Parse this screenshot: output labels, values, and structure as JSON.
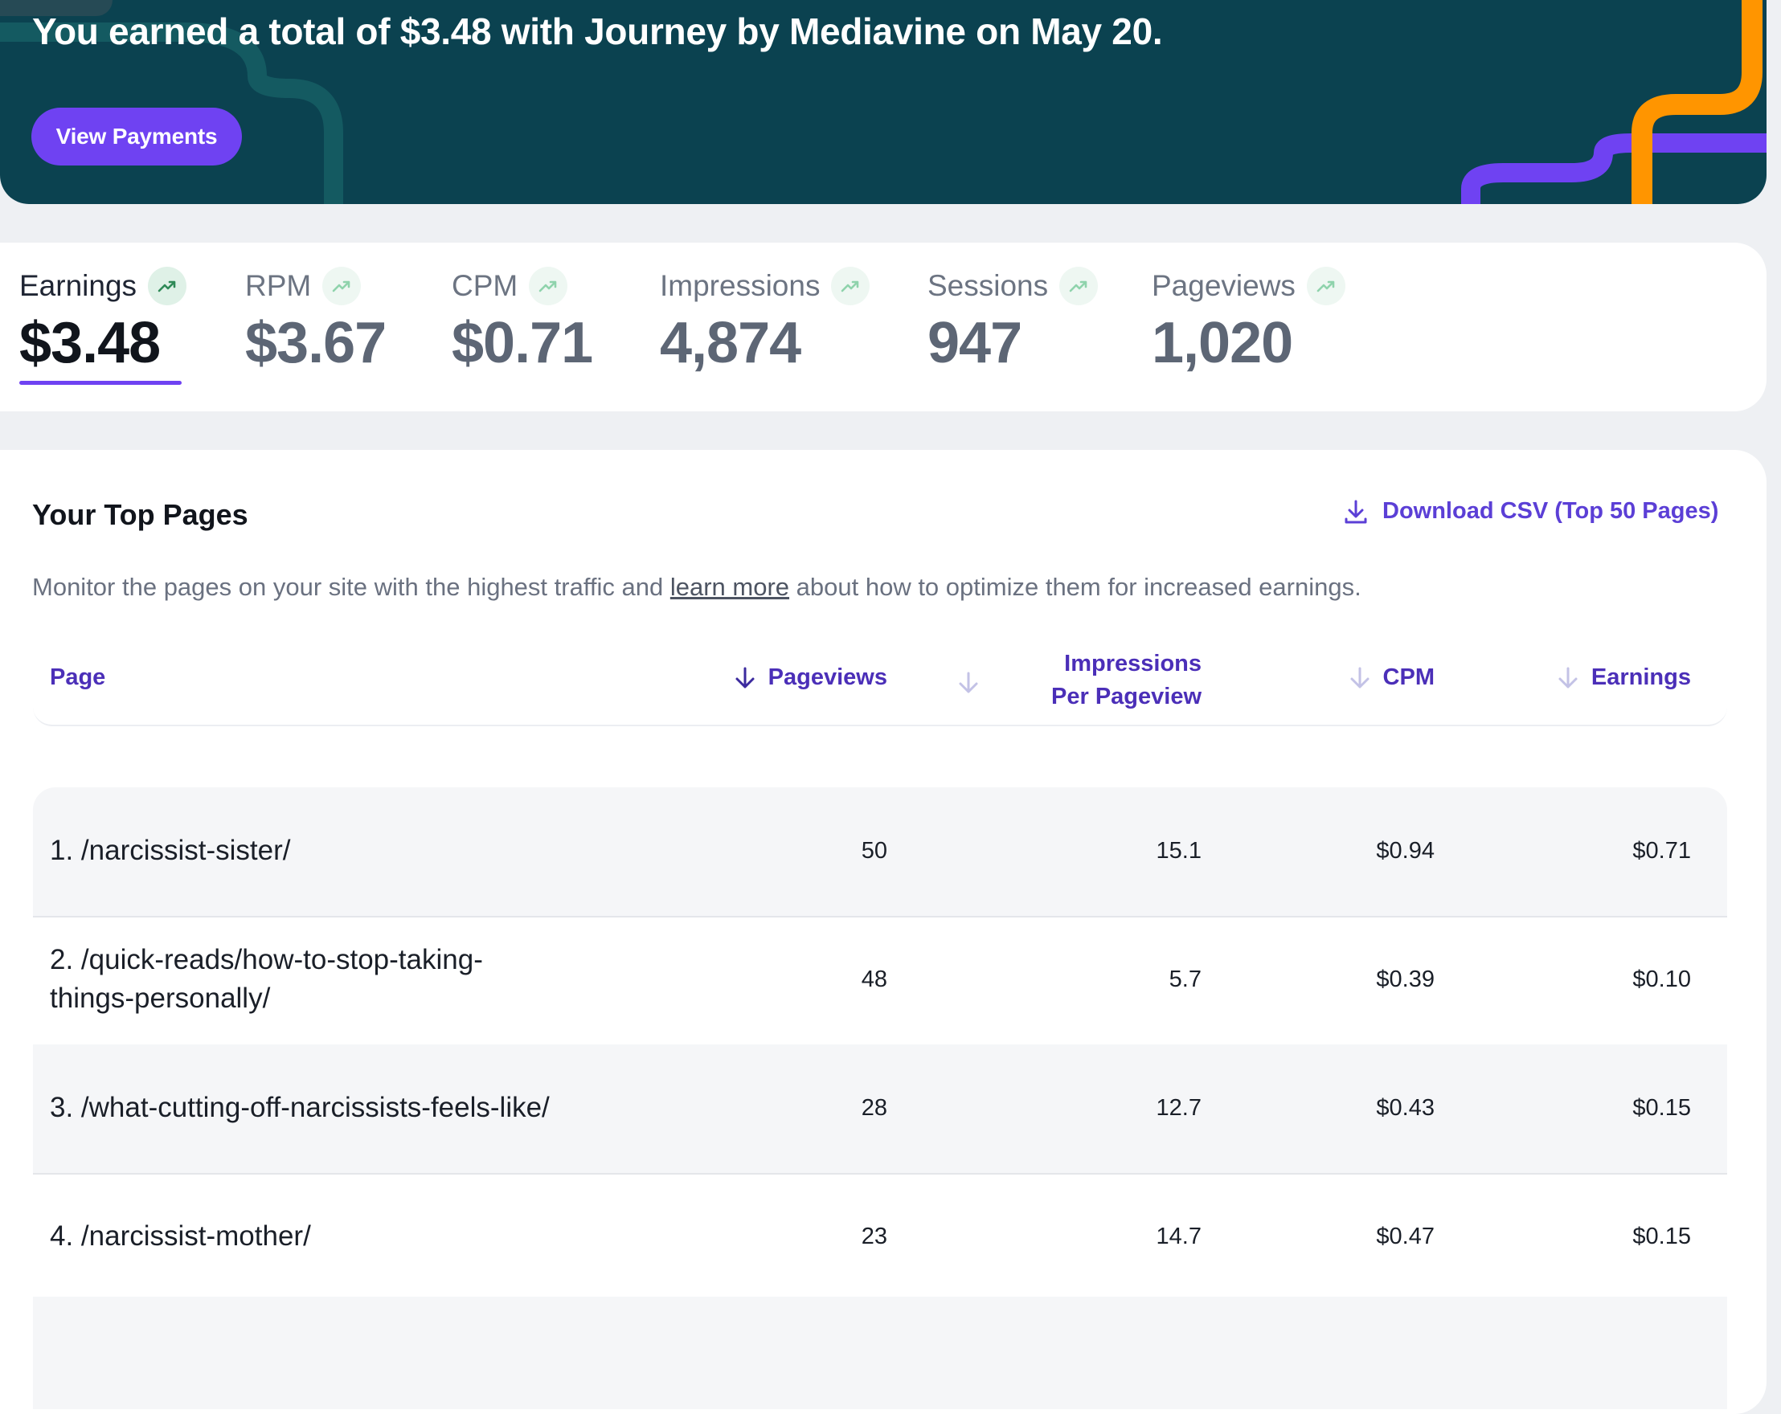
{
  "banner": {
    "title": "You earned a total of $3.48 with Journey by Mediavine on May 20.",
    "button_label": "View Payments",
    "colors": {
      "background": "#0b4250",
      "accent_purple": "#6f42f2",
      "accent_orange": "#ff9500"
    }
  },
  "stats": [
    {
      "label": "Earnings",
      "value": "$3.48",
      "active": true,
      "icon": "trend-up-icon"
    },
    {
      "label": "RPM",
      "value": "$3.67",
      "active": false,
      "icon": "trend-up-icon"
    },
    {
      "label": "CPM",
      "value": "$0.71",
      "active": false,
      "icon": "trend-up-icon"
    },
    {
      "label": "Impressions",
      "value": "4,874",
      "active": false,
      "icon": "trend-up-icon"
    },
    {
      "label": "Sessions",
      "value": "947",
      "active": false,
      "icon": "trend-up-icon"
    },
    {
      "label": "Pageviews",
      "value": "1,020",
      "active": false,
      "icon": "trend-up-icon"
    }
  ],
  "top_pages": {
    "title": "Your Top Pages",
    "download_label": "Download CSV (Top 50 Pages)",
    "description_before": "Monitor the pages on your site with the highest traffic and ",
    "description_link": "learn more",
    "description_after": " about how to optimize them for increased earnings.",
    "columns": {
      "page": "Page",
      "pageviews": "Pageviews",
      "ipp_line1": "Impressions",
      "ipp_line2": "Per Pageview",
      "cpm": "CPM",
      "earnings": "Earnings"
    },
    "rows": [
      {
        "page_line1": "1. /narcissist-sister/",
        "page_line2": "",
        "pageviews": "50",
        "ipp": "15.1",
        "cpm": "$0.94",
        "earnings": "$0.71"
      },
      {
        "page_line1": "2. /quick-reads/how-to-stop-taking-",
        "page_line2": "things-personally/",
        "pageviews": "48",
        "ipp": "5.7",
        "cpm": "$0.39",
        "earnings": "$0.10"
      },
      {
        "page_line1": "3. /what-cutting-off-narcissists-feels-like/",
        "page_line2": "",
        "pageviews": "28",
        "ipp": "12.7",
        "cpm": "$0.43",
        "earnings": "$0.15"
      },
      {
        "page_line1": "4. /narcissist-mother/",
        "page_line2": "",
        "pageviews": "23",
        "ipp": "14.7",
        "cpm": "$0.47",
        "earnings": "$0.15"
      }
    ]
  }
}
